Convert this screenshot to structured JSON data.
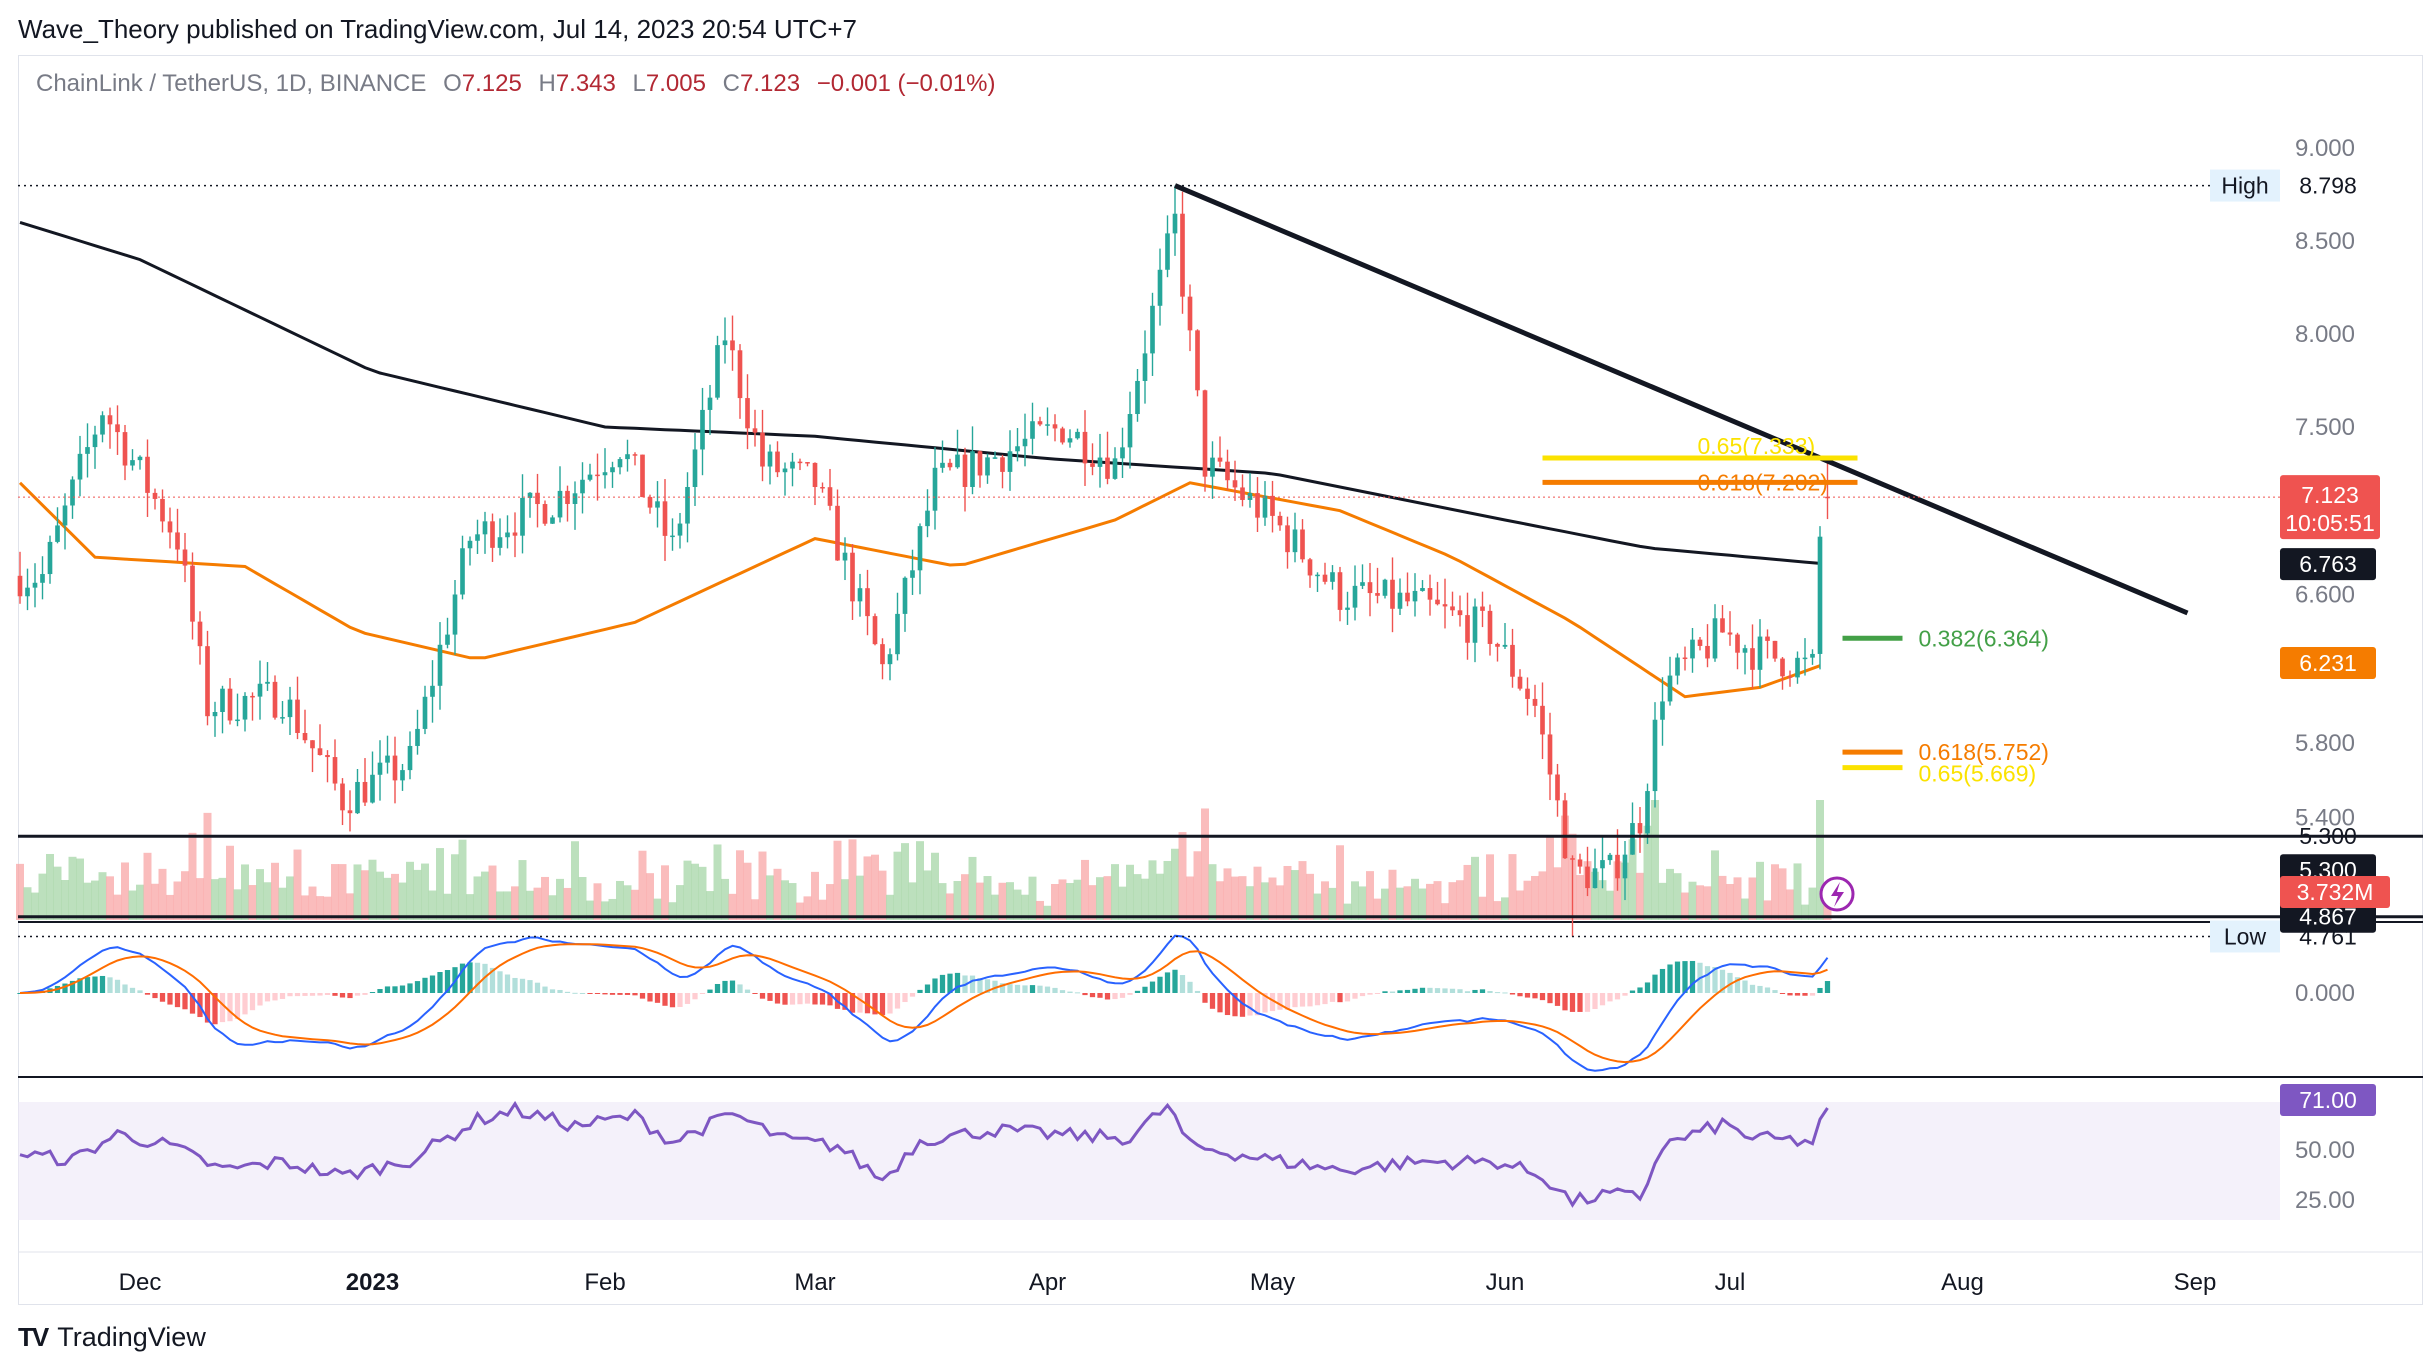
{
  "header": {
    "published": "Wave_Theory published on TradingView.com, Jul 14, 2023 20:54 UTC+7"
  },
  "legend": {
    "symbol": "ChainLink / TetherUS, 1D, BINANCE",
    "o_key": "O",
    "o": "7.125",
    "h_key": "H",
    "h": "7.343",
    "l_key": "L",
    "l": "7.005",
    "c_key": "C",
    "c": "7.123",
    "change": "−0.001 (−0.01%)"
  },
  "brand": {
    "logo": "TV",
    "name": "TradingView"
  },
  "colors": {
    "up": "#26a69a",
    "down": "#ef5350",
    "ema50": "#f57c00",
    "ema200": "#131722",
    "macd": "#2962ff",
    "signal": "#ff6d00",
    "rsi": "#7e57c2",
    "fib_orange": "#f57c00",
    "fib_yellow": "#fbe200",
    "fib_green": "#43a047"
  },
  "chart_data": [
    {
      "type": "candlestick",
      "title": "",
      "x_ticks": [
        "Dec",
        "2023",
        "Feb",
        "Mar",
        "Apr",
        "May",
        "Jun",
        "Jul",
        "Aug",
        "Sep"
      ],
      "y_ticks": [
        "9.000",
        "8.500",
        "8.000",
        "7.500",
        "6.600",
        "5.800",
        "5.400"
      ],
      "ylim": [
        4.5,
        9.5
      ],
      "key_points": [
        {
          "date": "2022-11-18",
          "price": 6.7
        },
        {
          "date": "2022-11-26",
          "price": 7.6
        },
        {
          "date": "2022-12-06",
          "price": 6.9
        },
        {
          "date": "2022-12-10",
          "price": 6.0
        },
        {
          "date": "2022-12-20",
          "price": 6.05
        },
        {
          "date": "2022-12-28",
          "price": 5.5
        },
        {
          "date": "2023-01-06",
          "price": 5.7
        },
        {
          "date": "2023-01-14",
          "price": 6.9
        },
        {
          "date": "2023-01-25",
          "price": 7.1
        },
        {
          "date": "2023-02-03",
          "price": 7.4
        },
        {
          "date": "2023-02-10",
          "price": 6.85
        },
        {
          "date": "2023-02-17",
          "price": 8.0
        },
        {
          "date": "2023-02-22",
          "price": 7.3
        },
        {
          "date": "2023-03-01",
          "price": 7.2
        },
        {
          "date": "2023-03-10",
          "price": 6.2
        },
        {
          "date": "2023-03-13",
          "price": 6.6
        },
        {
          "date": "2023-03-17",
          "price": 7.2
        },
        {
          "date": "2023-04-03",
          "price": 7.5
        },
        {
          "date": "2023-04-10",
          "price": 7.3
        },
        {
          "date": "2023-04-18",
          "price": 8.6
        },
        {
          "date": "2023-04-22",
          "price": 7.3
        },
        {
          "date": "2023-05-01",
          "price": 7.0
        },
        {
          "date": "2023-05-10",
          "price": 6.6
        },
        {
          "date": "2023-05-20",
          "price": 6.55
        },
        {
          "date": "2023-05-30",
          "price": 6.4
        },
        {
          "date": "2023-06-05",
          "price": 6.0
        },
        {
          "date": "2023-06-10",
          "price": 5.1
        },
        {
          "date": "2023-06-15",
          "price": 5.1
        },
        {
          "date": "2023-06-19",
          "price": 5.4
        },
        {
          "date": "2023-06-22",
          "price": 6.1
        },
        {
          "date": "2023-06-30",
          "price": 6.4
        },
        {
          "date": "2023-07-04",
          "price": 6.3
        },
        {
          "date": "2023-07-12",
          "price": 6.2
        },
        {
          "date": "2023-07-13",
          "price": 6.9
        },
        {
          "date": "2023-07-14",
          "price": 7.123
        }
      ],
      "ema50_points": [
        {
          "date": "2022-11-15",
          "value": 7.2
        },
        {
          "date": "2022-11-25",
          "value": 6.8
        },
        {
          "date": "2022-12-15",
          "value": 6.75
        },
        {
          "date": "2022-12-30",
          "value": 6.4
        },
        {
          "date": "2023-01-15",
          "value": 6.25
        },
        {
          "date": "2023-02-05",
          "value": 6.45
        },
        {
          "date": "2023-03-01",
          "value": 6.9
        },
        {
          "date": "2023-03-20",
          "value": 6.75
        },
        {
          "date": "2023-04-10",
          "value": 7.0
        },
        {
          "date": "2023-04-20",
          "value": 7.2
        },
        {
          "date": "2023-05-10",
          "value": 7.05
        },
        {
          "date": "2023-05-25",
          "value": 6.8
        },
        {
          "date": "2023-06-10",
          "value": 6.45
        },
        {
          "date": "2023-06-25",
          "value": 6.05
        },
        {
          "date": "2023-07-05",
          "value": 6.1
        },
        {
          "date": "2023-07-14",
          "value": 6.231
        }
      ],
      "ema200_points": [
        {
          "date": "2022-11-15",
          "value": 8.6
        },
        {
          "date": "2022-12-01",
          "value": 8.4
        },
        {
          "date": "2023-01-01",
          "value": 7.8
        },
        {
          "date": "2023-02-01",
          "value": 7.5
        },
        {
          "date": "2023-03-01",
          "value": 7.45
        },
        {
          "date": "2023-04-01",
          "value": 7.33
        },
        {
          "date": "2023-05-01",
          "value": 7.25
        },
        {
          "date": "2023-06-01",
          "value": 7.0
        },
        {
          "date": "2023-06-20",
          "value": 6.85
        },
        {
          "date": "2023-07-14",
          "value": 6.763
        }
      ],
      "trendline": [
        {
          "date": "2023-04-18",
          "price": 8.798
        },
        {
          "date": "2023-08-31",
          "price": 6.5
        }
      ],
      "horizontal_levels": [
        {
          "value": 5.3,
          "label": "5.300"
        },
        {
          "value": 4.867,
          "label": "4.867"
        }
      ],
      "high_low": {
        "high_label": "High",
        "high": "8.798",
        "high_value": 8.798,
        "low_label": "Low",
        "low": "4.761",
        "low_value": 4.761
      },
      "fib_levels": [
        {
          "label": "0.65(7.333)",
          "value": 7.333,
          "color": "#fbe200",
          "from": "2023-06-06",
          "to": "2023-07-18"
        },
        {
          "label": "0.618(7.202)",
          "value": 7.202,
          "color": "#f57c00",
          "from": "2023-06-06",
          "to": "2023-07-18"
        },
        {
          "label": "0.382(6.364)",
          "value": 6.364,
          "color": "#43a047",
          "from": "2023-07-16",
          "to": "2023-07-24"
        },
        {
          "label": "0.618(5.752)",
          "value": 5.752,
          "color": "#f57c00",
          "from": "2023-07-16",
          "to": "2023-07-24"
        },
        {
          "label": "0.65(5.669)",
          "value": 5.669,
          "color": "#fbe200",
          "from": "2023-07-16",
          "to": "2023-07-24"
        }
      ],
      "price_tags": {
        "last": "7.123",
        "countdown": "10:05:51",
        "ema200": "6.763",
        "ema50": "6.231",
        "volume": "3.732M"
      }
    },
    {
      "type": "histogram-line",
      "title": "",
      "y_ticks": [
        "0.000"
      ],
      "series": [
        {
          "values": []
        }
      ]
    },
    {
      "type": "line",
      "title": "",
      "y_ticks": [
        "50.00",
        "25.00"
      ],
      "ylim": [
        15,
        85
      ],
      "band": [
        30,
        70
      ],
      "last_value": "71.00",
      "points": [
        {
          "date": "2022-11-15",
          "value": 48
        },
        {
          "date": "2022-11-22",
          "value": 45
        },
        {
          "date": "2022-11-28",
          "value": 58
        },
        {
          "date": "2022-12-05",
          "value": 52
        },
        {
          "date": "2022-12-12",
          "value": 40
        },
        {
          "date": "2022-12-20",
          "value": 44
        },
        {
          "date": "2022-12-28",
          "value": 37
        },
        {
          "date": "2023-01-06",
          "value": 45
        },
        {
          "date": "2023-01-15",
          "value": 65
        },
        {
          "date": "2023-01-20",
          "value": 70
        },
        {
          "date": "2023-01-28",
          "value": 62
        },
        {
          "date": "2023-02-05",
          "value": 67
        },
        {
          "date": "2023-02-10",
          "value": 54
        },
        {
          "date": "2023-02-18",
          "value": 68
        },
        {
          "date": "2023-02-25",
          "value": 55
        },
        {
          "date": "2023-03-04",
          "value": 52
        },
        {
          "date": "2023-03-10",
          "value": 35
        },
        {
          "date": "2023-03-15",
          "value": 55
        },
        {
          "date": "2023-03-25",
          "value": 60
        },
        {
          "date": "2023-04-05",
          "value": 57
        },
        {
          "date": "2023-04-12",
          "value": 56
        },
        {
          "date": "2023-04-17",
          "value": 72
        },
        {
          "date": "2023-04-20",
          "value": 52
        },
        {
          "date": "2023-05-01",
          "value": 45
        },
        {
          "date": "2023-05-10",
          "value": 40
        },
        {
          "date": "2023-05-20",
          "value": 44
        },
        {
          "date": "2023-05-31",
          "value": 44
        },
        {
          "date": "2023-06-06",
          "value": 37
        },
        {
          "date": "2023-06-10",
          "value": 24
        },
        {
          "date": "2023-06-15",
          "value": 28
        },
        {
          "date": "2023-06-19",
          "value": 26
        },
        {
          "date": "2023-06-22",
          "value": 52
        },
        {
          "date": "2023-06-30",
          "value": 63
        },
        {
          "date": "2023-07-04",
          "value": 56
        },
        {
          "date": "2023-07-12",
          "value": 54
        },
        {
          "date": "2023-07-14",
          "value": 71
        }
      ]
    }
  ]
}
